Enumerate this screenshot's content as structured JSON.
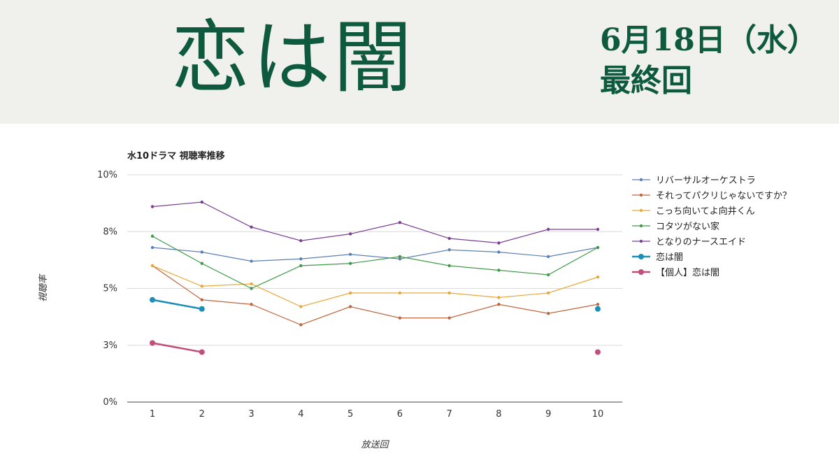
{
  "header": {
    "title": "恋は闇",
    "date": "6月18日（水）",
    "note": "最終回"
  },
  "chart_data": {
    "type": "line",
    "title": "水10ドラマ 視聴率推移",
    "xlabel": "放送回",
    "ylabel": "視聴率",
    "ylim": [
      0,
      10
    ],
    "y_ticks": [
      {
        "value": 0,
        "label": "0%"
      },
      {
        "value": 2.5,
        "label": "3%"
      },
      {
        "value": 5,
        "label": "5%"
      },
      {
        "value": 7.5,
        "label": "8%"
      },
      {
        "value": 10,
        "label": "10%"
      }
    ],
    "x": [
      1,
      2,
      3,
      4,
      5,
      6,
      7,
      8,
      9,
      10
    ],
    "grid": true,
    "legend": "right",
    "series": [
      {
        "name": "リバーサルオーケストラ",
        "color": "#5b7fb5",
        "values": [
          6.8,
          6.6,
          6.2,
          6.3,
          6.5,
          6.3,
          6.7,
          6.6,
          6.4,
          6.8
        ]
      },
      {
        "name": "それってパクリじゃないですか？",
        "color": "#c0663f",
        "values": [
          6.0,
          4.5,
          4.3,
          3.4,
          4.2,
          3.7,
          3.7,
          4.3,
          3.9,
          4.3
        ]
      },
      {
        "name": "こっち向いてよ向井くん",
        "color": "#e8a93c",
        "values": [
          6.0,
          5.1,
          5.2,
          4.2,
          4.8,
          4.8,
          4.8,
          4.6,
          4.8,
          5.5
        ]
      },
      {
        "name": "コタツがない家",
        "color": "#3f9a48",
        "values": [
          7.3,
          6.1,
          5.0,
          6.0,
          6.1,
          6.4,
          6.0,
          5.8,
          5.6,
          6.8
        ]
      },
      {
        "name": "となりのナースエイド",
        "color": "#7b3f93",
        "values": [
          8.6,
          8.8,
          7.7,
          7.1,
          7.4,
          7.9,
          7.2,
          7.0,
          7.6,
          7.6
        ]
      },
      {
        "name": "恋は闇",
        "color": "#1b8fb7",
        "values": [
          4.5,
          4.1,
          null,
          null,
          null,
          null,
          null,
          null,
          null,
          4.1
        ],
        "bold": true
      },
      {
        "name": "【個人】恋は闇",
        "color": "#c04f7c",
        "values": [
          2.6,
          2.2,
          null,
          null,
          null,
          null,
          null,
          null,
          null,
          2.2
        ],
        "bold": true
      }
    ]
  }
}
